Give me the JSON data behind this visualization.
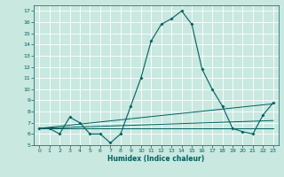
{
  "title": "",
  "xlabel": "Humidex (Indice chaleur)",
  "ylabel": "",
  "bg_color": "#c8e8e0",
  "grid_color": "#ffffff",
  "line_color": "#006060",
  "xlim": [
    -0.5,
    23.5
  ],
  "ylim": [
    5,
    17.5
  ],
  "yticks": [
    5,
    6,
    7,
    8,
    9,
    10,
    11,
    12,
    13,
    14,
    15,
    16,
    17
  ],
  "xticks": [
    0,
    1,
    2,
    3,
    4,
    5,
    6,
    7,
    8,
    9,
    10,
    11,
    12,
    13,
    14,
    15,
    16,
    17,
    18,
    19,
    20,
    21,
    22,
    23
  ],
  "series_main": {
    "x": [
      0,
      1,
      2,
      3,
      4,
      5,
      6,
      7,
      8,
      9,
      10,
      11,
      12,
      13,
      14,
      15,
      16,
      17,
      18,
      19,
      20,
      21,
      22,
      23
    ],
    "y": [
      6.5,
      6.5,
      6.0,
      7.5,
      7.0,
      6.0,
      6.0,
      5.2,
      6.0,
      8.5,
      11.0,
      14.3,
      15.8,
      16.3,
      17.0,
      15.8,
      11.8,
      10.0,
      8.5,
      6.5,
      6.2,
      6.0,
      7.7,
      8.8
    ]
  },
  "series_lines": [
    {
      "x": [
        0,
        23
      ],
      "y": [
        6.5,
        8.7
      ]
    },
    {
      "x": [
        0,
        23
      ],
      "y": [
        6.5,
        7.2
      ]
    },
    {
      "x": [
        0,
        23
      ],
      "y": [
        6.5,
        6.5
      ]
    }
  ]
}
